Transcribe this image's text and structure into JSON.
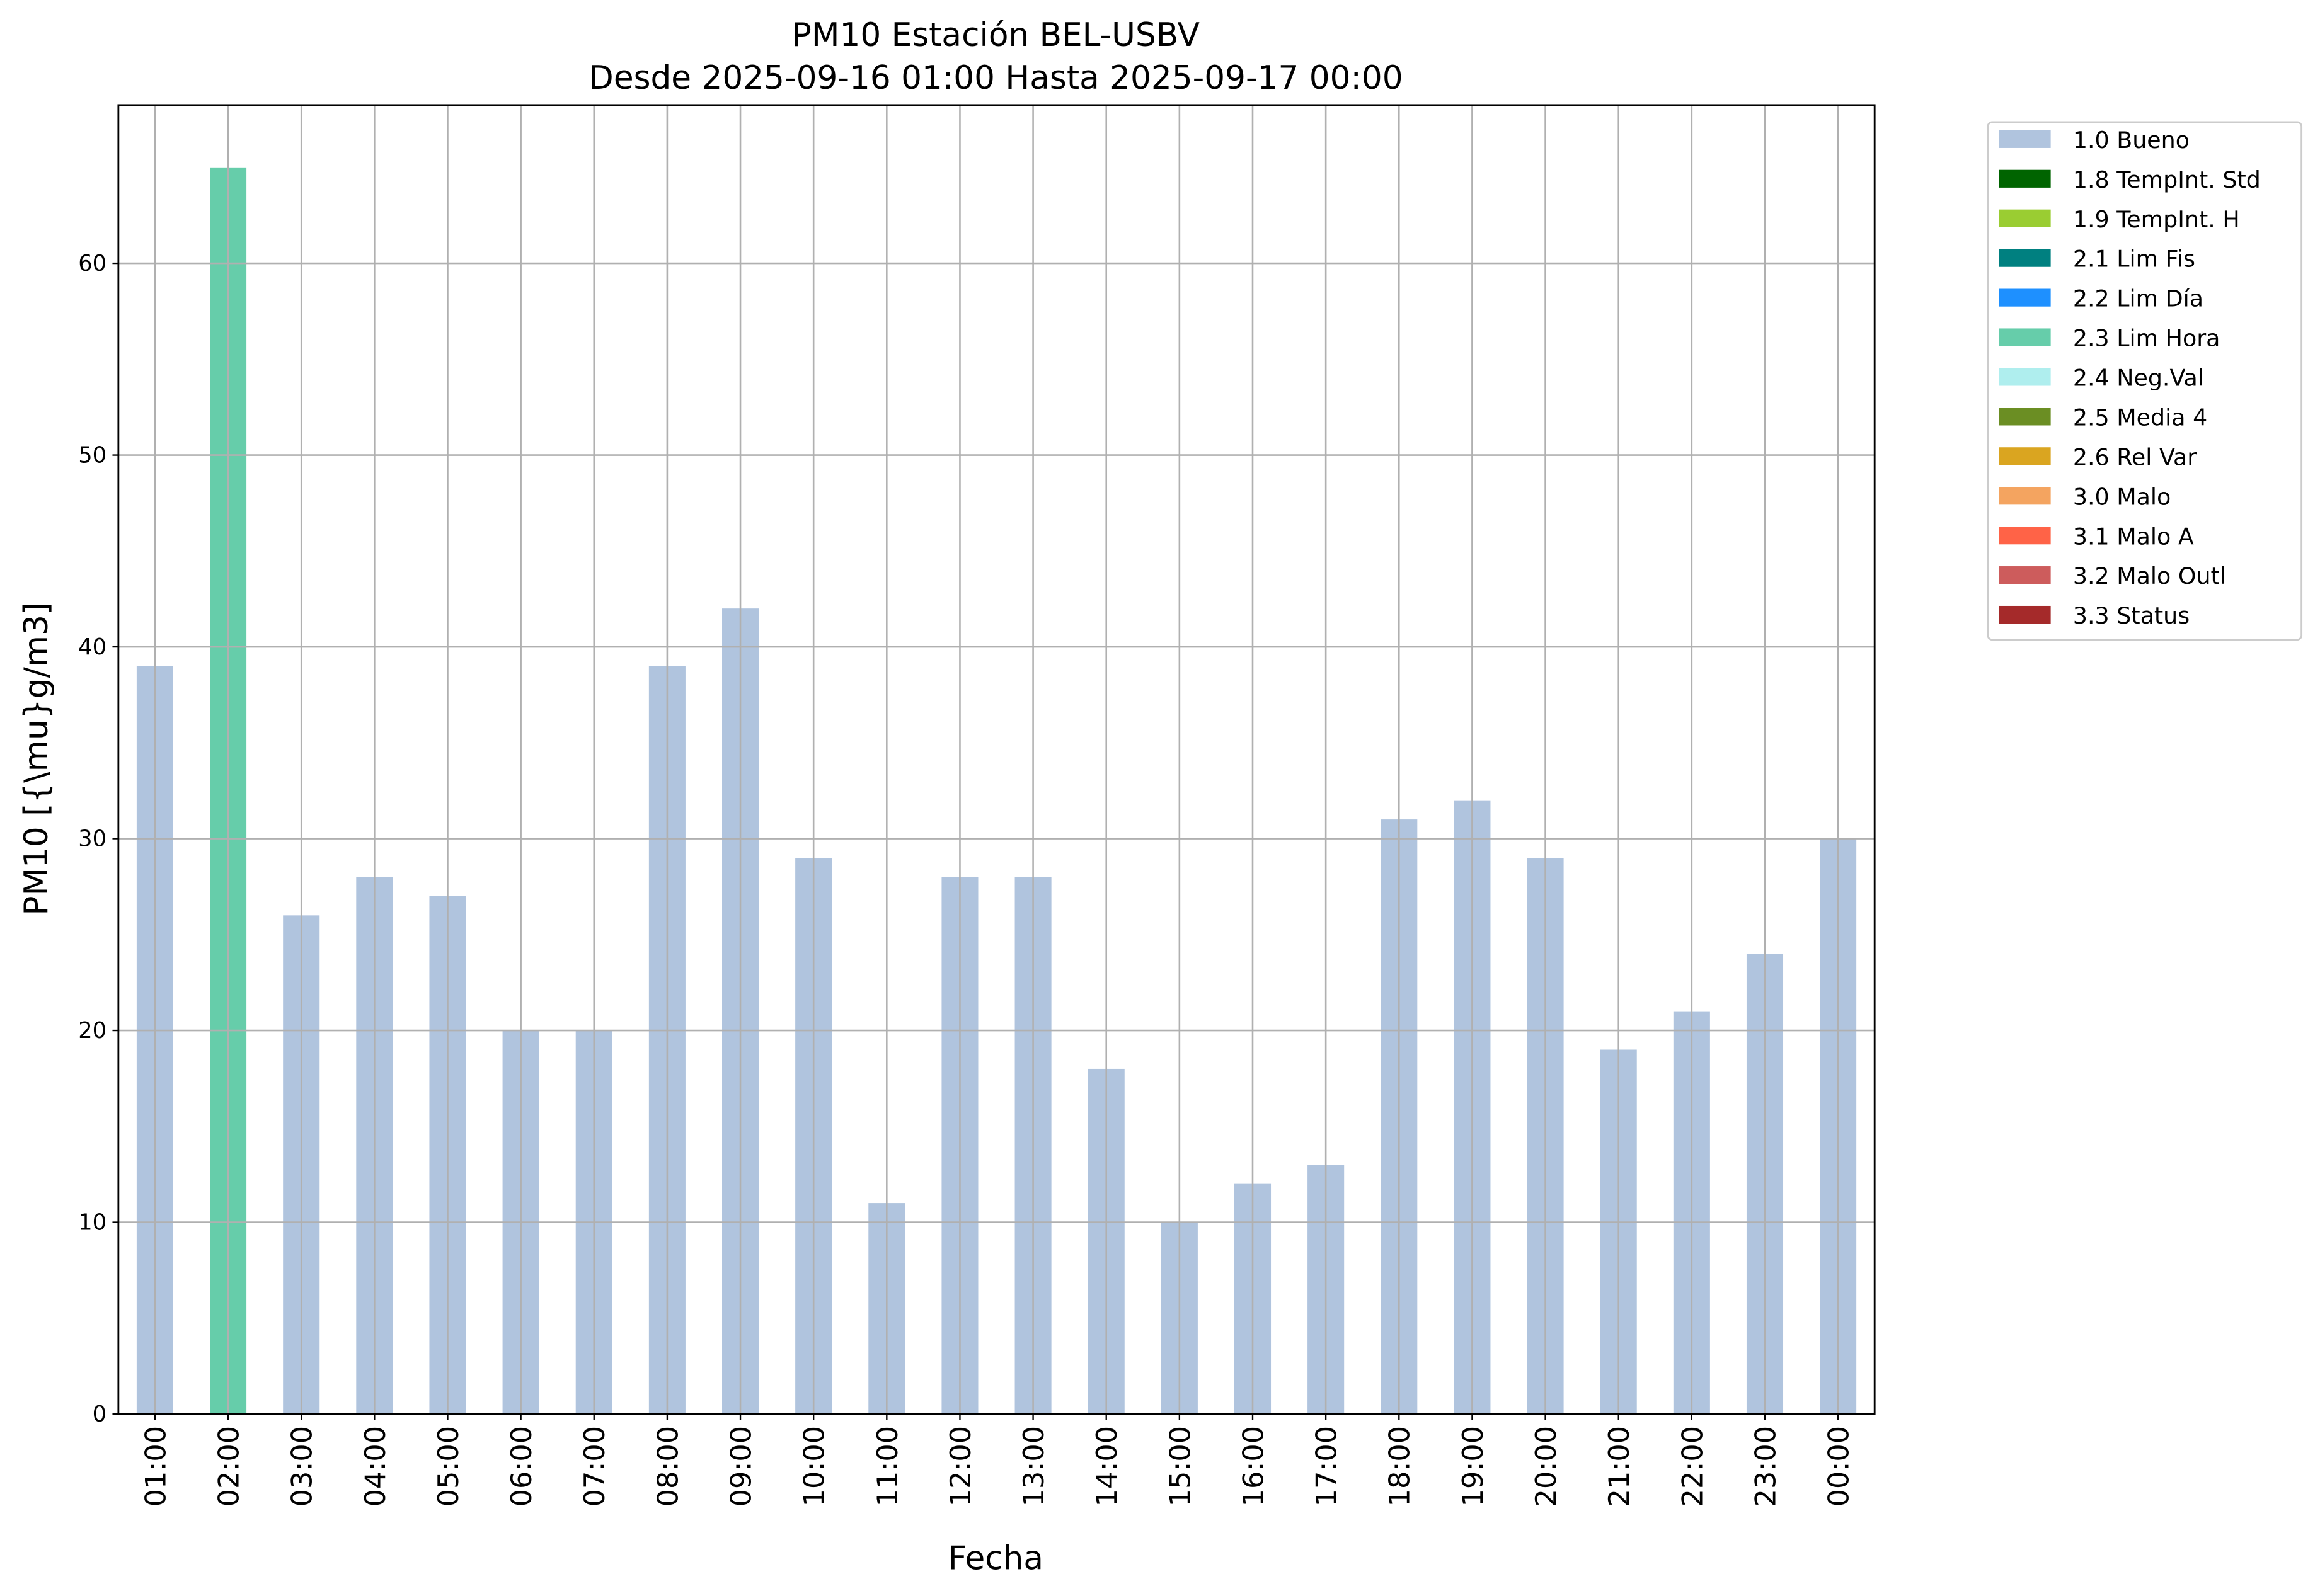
{
  "chart_data": {
    "type": "bar",
    "title": "PM10 Estación BEL-USBV",
    "subtitle": "Desde 2025-09-16 01:00 Hasta 2025-09-17 00:00",
    "xlabel": "Fecha",
    "ylabel": "PM10 [{\\mu}g/m3]",
    "ylim": [
      0,
      68.25
    ],
    "yticks": [
      0,
      10,
      20,
      30,
      40,
      50,
      60
    ],
    "grid": true,
    "legend_position": "outside-top-right",
    "categories": [
      "01:00",
      "02:00",
      "03:00",
      "04:00",
      "05:00",
      "06:00",
      "07:00",
      "08:00",
      "09:00",
      "10:00",
      "11:00",
      "12:00",
      "13:00",
      "14:00",
      "15:00",
      "16:00",
      "17:00",
      "18:00",
      "19:00",
      "20:00",
      "21:00",
      "22:00",
      "23:00",
      "00:00"
    ],
    "values": [
      39,
      65,
      26,
      28,
      27,
      20,
      20,
      39,
      42,
      29,
      11,
      28,
      28,
      18,
      10,
      12,
      13,
      31,
      32,
      29,
      19,
      21,
      24,
      30
    ],
    "flags": [
      "1.0 Bueno",
      "2.3 Lim Hora",
      "1.0 Bueno",
      "1.0 Bueno",
      "1.0 Bueno",
      "1.0 Bueno",
      "1.0 Bueno",
      "1.0 Bueno",
      "1.0 Bueno",
      "1.0 Bueno",
      "1.0 Bueno",
      "1.0 Bueno",
      "1.0 Bueno",
      "1.0 Bueno",
      "1.0 Bueno",
      "1.0 Bueno",
      "1.0 Bueno",
      "1.0 Bueno",
      "1.0 Bueno",
      "1.0 Bueno",
      "1.0 Bueno",
      "1.0 Bueno",
      "1.0 Bueno",
      "1.0 Bueno"
    ],
    "legend": [
      {
        "label": "1.0 Bueno",
        "color": "#b0c4de"
      },
      {
        "label": "1.8 TempInt. Std",
        "color": "#006400"
      },
      {
        "label": "1.9 TempInt. H",
        "color": "#9acd32"
      },
      {
        "label": "2.1 Lim Fis",
        "color": "#008080"
      },
      {
        "label": "2.2 Lim Día",
        "color": "#1e90ff"
      },
      {
        "label": "2.3 Lim Hora",
        "color": "#66cdaa"
      },
      {
        "label": "2.4 Neg.Val",
        "color": "#afeeee"
      },
      {
        "label": "2.5 Media 4",
        "color": "#6b8e23"
      },
      {
        "label": "2.6 Rel Var",
        "color": "#daa520"
      },
      {
        "label": "3.0 Malo",
        "color": "#f4a460"
      },
      {
        "label": "3.1 Malo A",
        "color": "#ff6347"
      },
      {
        "label": "3.2 Malo Outl",
        "color": "#cd5c5c"
      },
      {
        "label": "3.3 Status",
        "color": "#a52a2a"
      }
    ]
  }
}
